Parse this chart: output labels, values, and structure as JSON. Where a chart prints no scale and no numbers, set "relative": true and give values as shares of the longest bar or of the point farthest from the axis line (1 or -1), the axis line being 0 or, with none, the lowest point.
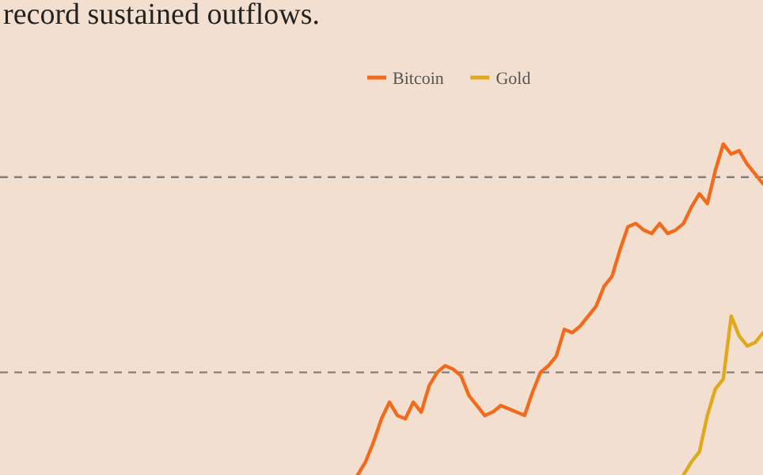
{
  "chart_data": {
    "type": "line",
    "title": "record sustained outflows.",
    "relative": true,
    "legend": "top",
    "line_style": "solid",
    "marker": "none",
    "categories": [
      null,
      null,
      null,
      null,
      null,
      null,
      null,
      null,
      null,
      null,
      null,
      null,
      null,
      null,
      null,
      null,
      null,
      null,
      null,
      null,
      null,
      null,
      null,
      null,
      null,
      null,
      null,
      null,
      null,
      null,
      null,
      null,
      null,
      null,
      null,
      null,
      null,
      null,
      null,
      null,
      null,
      null,
      null,
      null,
      null,
      null,
      null,
      null,
      null,
      null,
      null,
      null,
      null,
      null,
      null,
      null,
      null,
      null,
      null,
      null,
      null,
      null,
      null,
      null,
      null,
      null,
      null,
      null,
      null,
      null,
      null,
      null,
      null,
      null,
      null,
      null,
      null,
      null,
      null,
      null,
      null,
      null,
      null,
      null,
      null,
      null,
      null,
      null,
      null,
      null,
      null,
      null,
      null,
      null,
      null,
      null,
      null
    ],
    "series": [
      {
        "name": "Bitcoin",
        "color": "#f26b1d",
        "values": [
          null,
          null,
          null,
          null,
          null,
          null,
          null,
          null,
          null,
          null,
          null,
          null,
          null,
          null,
          null,
          null,
          null,
          null,
          null,
          null,
          null,
          null,
          null,
          null,
          null,
          null,
          null,
          null,
          null,
          null,
          null,
          null,
          null,
          null,
          null,
          null,
          null,
          null,
          null,
          null,
          null,
          null,
          null,
          null,
          null,
          0.0,
          0.04,
          0.1,
          0.17,
          0.22,
          0.18,
          0.17,
          0.22,
          0.19,
          0.27,
          0.31,
          0.33,
          0.32,
          0.3,
          0.24,
          0.21,
          0.18,
          0.19,
          0.21,
          0.2,
          0.19,
          0.18,
          0.25,
          0.31,
          0.33,
          0.36,
          0.44,
          0.43,
          0.45,
          0.48,
          0.51,
          0.57,
          0.6,
          0.68,
          0.75,
          0.76,
          0.74,
          0.73,
          0.76,
          0.73,
          0.74,
          0.76,
          0.81,
          0.85,
          0.82,
          0.92,
          1.0,
          0.97,
          0.98,
          0.94,
          0.91,
          0.88
        ]
      },
      {
        "name": "Gold",
        "color": "#e0a81c",
        "values": [
          null,
          null,
          null,
          null,
          null,
          null,
          null,
          null,
          null,
          null,
          null,
          null,
          null,
          null,
          null,
          null,
          null,
          null,
          null,
          null,
          null,
          null,
          null,
          null,
          null,
          null,
          null,
          null,
          null,
          null,
          null,
          null,
          null,
          null,
          null,
          null,
          null,
          null,
          null,
          null,
          null,
          null,
          null,
          null,
          null,
          null,
          null,
          null,
          null,
          null,
          null,
          null,
          null,
          null,
          null,
          null,
          null,
          null,
          null,
          null,
          null,
          null,
          null,
          null,
          null,
          null,
          null,
          null,
          null,
          null,
          null,
          null,
          null,
          null,
          null,
          null,
          null,
          null,
          null,
          null,
          null,
          null,
          null,
          null,
          null,
          null,
          0.0,
          0.04,
          0.07,
          0.18,
          0.26,
          0.29,
          0.48,
          0.42,
          0.39,
          0.4,
          0.43
        ]
      }
    ],
    "ref_lines": [
      {
        "axis": "y",
        "value": 0.9,
        "color": "#808080",
        "line_style": "dashed"
      },
      {
        "axis": "y",
        "value": 0.31,
        "color": "#808080",
        "line_style": "dashed"
      }
    ]
  }
}
